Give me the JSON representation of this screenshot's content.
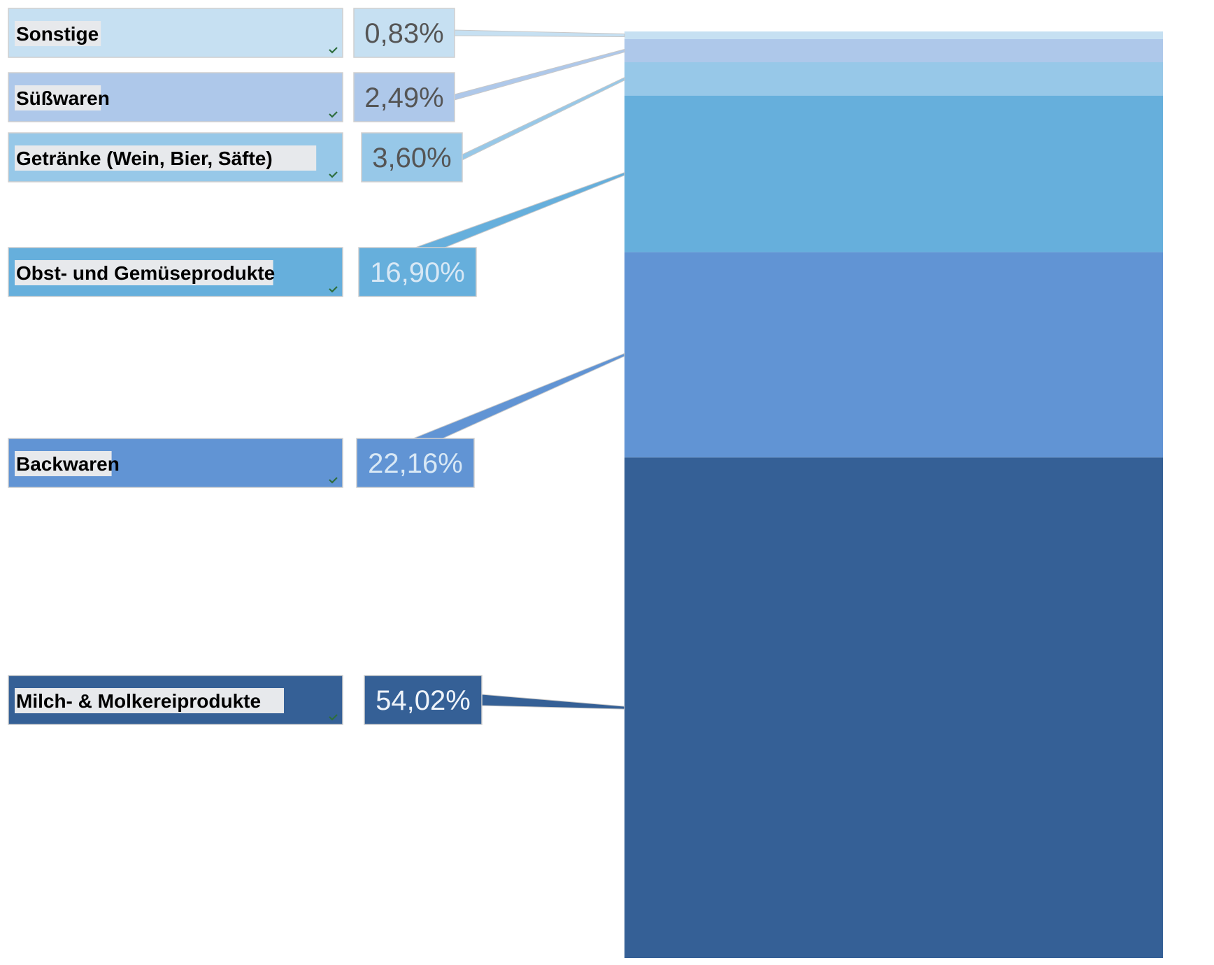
{
  "chart_data": {
    "type": "bar",
    "stacked": true,
    "categories": [
      "Sonstige",
      "Süßwaren",
      "Getränke (Wein, Bier, Säfte)",
      "Obst- und Gemüseprodukte",
      "Backwaren",
      "Milch- & Molkereiprodukte"
    ],
    "values": [
      0.83,
      2.49,
      3.6,
      16.9,
      22.16,
      54.02
    ],
    "value_labels": [
      "0,83%",
      "2,49%",
      "3,60%",
      "16,90%",
      "22,16%",
      "54,02%"
    ],
    "colors": [
      "#c6e0f2",
      "#aec8ea",
      "#97c8e8",
      "#66afdc",
      "#6194d4",
      "#356096"
    ],
    "value_text_colors": [
      "#555555",
      "#555555",
      "#555555",
      "#d8e8f5",
      "#d8e8f5",
      "#eef3f9"
    ],
    "ylim": [
      0,
      100
    ],
    "legend": "left",
    "grid": false
  }
}
